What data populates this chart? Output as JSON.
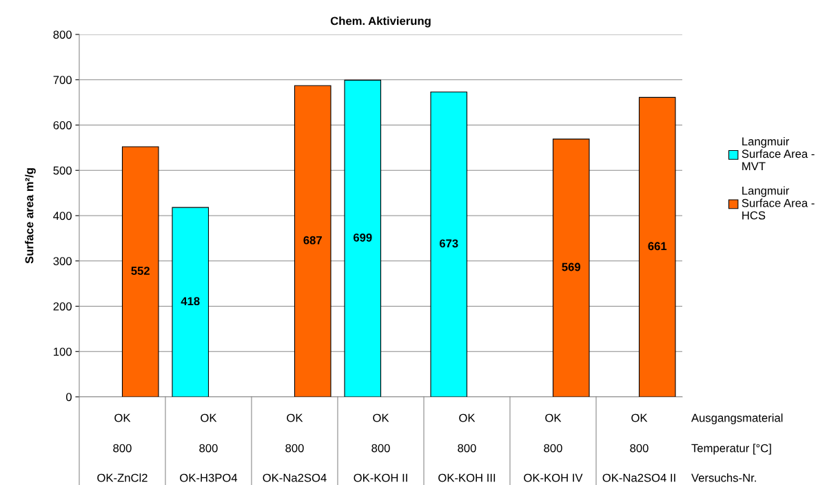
{
  "chart_data": {
    "type": "bar",
    "title": "Chem. Aktivierung",
    "ylabel": "Surface area m²/g",
    "categories": [
      "OK\n800\nOK-ZnCl2",
      "OK\n800\nOK-H3PO4",
      "OK\n800\nOK-Na2SO4",
      "OK\n800\nOK-KOH II",
      "OK\n800\nOK-KOH III",
      "OK\n800\nOK-KOH IV",
      "OK\n800\nOK-Na2SO4 II"
    ],
    "series": [
      {
        "name": "Langmuir Surface Area - MVT",
        "color": "#00ffff",
        "values": [
          null,
          418,
          null,
          699,
          673,
          null,
          null
        ]
      },
      {
        "name": "Langmuir Surface Area - HCS",
        "color": "#ff6600",
        "values": [
          552,
          null,
          687,
          null,
          null,
          569,
          661
        ]
      }
    ],
    "annotations": [
      "Ausgangsmaterial",
      "Temperatur [°C]",
      "Versuchs-Nr."
    ],
    "ylim": [
      0,
      800
    ],
    "yticks": [
      0,
      100,
      200,
      300,
      400,
      500,
      600,
      700,
      800
    ],
    "grid": "y",
    "legend": "right",
    "data_labels": true
  }
}
